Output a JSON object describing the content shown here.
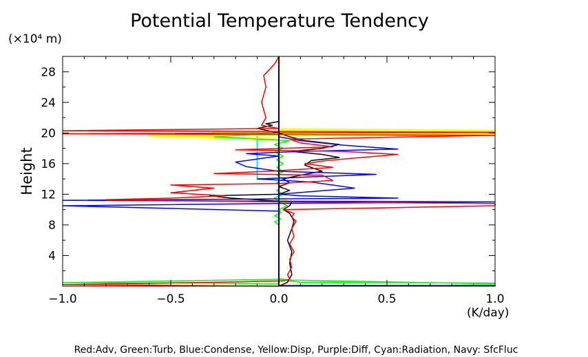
{
  "chart_data": {
    "type": "line",
    "title": "Potential Temperature Tendency",
    "ylabel": "Height",
    "yunit": "(×10⁴ m)",
    "xunit": "(K/day)",
    "xlim": [
      -1.0,
      1.0
    ],
    "ylim": [
      0,
      30
    ],
    "xticks": [
      -1.0,
      -0.5,
      0.0,
      0.5,
      1.0
    ],
    "xtick_labels": [
      "−1.0",
      "−0.5",
      "0.0",
      "0.5",
      "1.0"
    ],
    "yticks": [
      4,
      8,
      12,
      16,
      20,
      24,
      28
    ],
    "ytick_labels": [
      "4",
      "8",
      "12",
      "16",
      "20",
      "24",
      "28"
    ],
    "grid": false,
    "legend_text": "Red:Adv, Green:Turb, Blue:Condense, Yellow:Disp, Purple:Diff, Cyan:Radiation, Navy: SfcFluc",
    "series": [
      {
        "name": "Cyan:Radiation",
        "color": "#00e5ee",
        "width": 2,
        "points": [
          [
            0,
            0
          ],
          [
            0,
            13.9
          ],
          [
            -0.1,
            14
          ],
          [
            -0.1,
            19.8
          ],
          [
            -0.02,
            20
          ],
          [
            0,
            20.3
          ],
          [
            0,
            30
          ]
        ]
      },
      {
        "name": "Yellow:Disp",
        "color": "#ffff00",
        "width": 3,
        "points": [
          [
            0,
            0
          ],
          [
            0,
            10.8
          ],
          [
            0.05,
            11
          ],
          [
            0,
            11.5
          ],
          [
            0,
            19.2
          ],
          [
            -0.6,
            19.7
          ],
          [
            1,
            19.9
          ],
          [
            -0.3,
            20.1
          ],
          [
            1,
            20.3
          ],
          [
            0,
            20.5
          ],
          [
            0,
            30
          ]
        ]
      },
      {
        "name": "Green:Turb",
        "color": "#00ff00",
        "width": 1.5,
        "points": [
          [
            0,
            0.3
          ],
          [
            -0.35,
            0.4
          ],
          [
            -1,
            0.45
          ],
          [
            0,
            0.9
          ],
          [
            0.1,
            0.5
          ],
          [
            1,
            0.4
          ],
          [
            1,
            0.3
          ],
          [
            0.05,
            0.8
          ],
          [
            0,
            1
          ],
          [
            0,
            8
          ],
          [
            -0.02,
            8.4
          ],
          [
            0.01,
            8.8
          ],
          [
            -0.02,
            9.2
          ],
          [
            0.01,
            9.6
          ],
          [
            0,
            10
          ],
          [
            0.04,
            10.5
          ],
          [
            0,
            11
          ],
          [
            -0.02,
            11.5
          ],
          [
            0.02,
            12
          ],
          [
            -0.01,
            12.5
          ],
          [
            0.01,
            13
          ],
          [
            -0.01,
            13.5
          ],
          [
            0.02,
            14
          ],
          [
            -0.01,
            14.5
          ],
          [
            0.02,
            15
          ],
          [
            -0.01,
            15.5
          ],
          [
            0.02,
            16
          ],
          [
            -0.01,
            16.5
          ],
          [
            0.02,
            17
          ],
          [
            -0.02,
            17.5
          ],
          [
            0.02,
            18
          ],
          [
            -0.02,
            18.5
          ],
          [
            0.05,
            19
          ],
          [
            -0.3,
            19.5
          ],
          [
            0,
            20
          ],
          [
            0,
            30
          ]
        ]
      },
      {
        "name": "Black",
        "color": "#000000",
        "width": 1.5,
        "points": [
          [
            0,
            0
          ],
          [
            0.04,
            0.5
          ],
          [
            0.06,
            1.5
          ],
          [
            0.05,
            3
          ],
          [
            0.06,
            4.5
          ],
          [
            0.04,
            6
          ],
          [
            0.06,
            7.5
          ],
          [
            0.07,
            8.5
          ],
          [
            0.05,
            9.5
          ],
          [
            0.02,
            10
          ],
          [
            0.05,
            10.5
          ],
          [
            0.06,
            11
          ],
          [
            -0.22,
            11.5
          ],
          [
            -0.32,
            11.8
          ],
          [
            0,
            12
          ],
          [
            0.05,
            12.5
          ],
          [
            0,
            13
          ],
          [
            0.05,
            13.5
          ],
          [
            0.02,
            14
          ],
          [
            0.1,
            14.5
          ],
          [
            0.2,
            15
          ],
          [
            0.12,
            15.8
          ],
          [
            0.15,
            16.4
          ],
          [
            0.28,
            16.8
          ],
          [
            0.2,
            17.2
          ],
          [
            0.06,
            17.6
          ],
          [
            0.2,
            18
          ],
          [
            0.28,
            18.5
          ],
          [
            0.12,
            19
          ],
          [
            0.05,
            19.5
          ],
          [
            0,
            20
          ],
          [
            -0.1,
            20.6
          ],
          [
            -0.03,
            21
          ],
          [
            -0.06,
            21.2
          ],
          [
            0,
            21.5
          ],
          [
            0,
            30
          ]
        ]
      },
      {
        "name": "Blue:Condense",
        "color": "#0000ff",
        "width": 1.5,
        "points": [
          [
            0,
            0
          ],
          [
            0,
            9.8
          ],
          [
            -1,
            10.5
          ],
          [
            0,
            10.8
          ],
          [
            1,
            11
          ],
          [
            -1,
            11.2
          ],
          [
            0,
            11.4
          ],
          [
            0.55,
            11.5
          ],
          [
            0.1,
            11.8
          ],
          [
            0,
            12
          ],
          [
            0.35,
            12.8
          ],
          [
            0.15,
            13.6
          ],
          [
            -0.1,
            14
          ],
          [
            0.18,
            14.3
          ],
          [
            0.45,
            14.6
          ],
          [
            0,
            15
          ],
          [
            -0.15,
            15.6
          ],
          [
            -0.2,
            16.2
          ],
          [
            0,
            17
          ],
          [
            -0.15,
            17.3
          ],
          [
            0.1,
            17.6
          ],
          [
            0.55,
            17.9
          ],
          [
            0.3,
            18.4
          ],
          [
            0.1,
            19
          ],
          [
            0,
            19.5
          ],
          [
            0,
            30
          ]
        ]
      },
      {
        "name": "Red:Adv",
        "color": "#ff0000",
        "width": 1.5,
        "points": [
          [
            0,
            0
          ],
          [
            -1,
            0.2
          ],
          [
            -0.65,
            0.35
          ],
          [
            -0.2,
            0.55
          ],
          [
            0.02,
            0.7
          ],
          [
            0.05,
            0.9
          ],
          [
            0.04,
            1.5
          ],
          [
            0.06,
            2.5
          ],
          [
            0.05,
            3.5
          ],
          [
            0.07,
            4.5
          ],
          [
            0.05,
            5.5
          ],
          [
            0.07,
            6.5
          ],
          [
            0.06,
            7.5
          ],
          [
            0.08,
            8.5
          ],
          [
            0.06,
            9
          ],
          [
            0.07,
            9.5
          ],
          [
            0.02,
            10
          ],
          [
            1,
            10.5
          ],
          [
            1,
            10.8
          ],
          [
            0,
            11
          ],
          [
            -0.8,
            11.3
          ],
          [
            -0.5,
            11.5
          ],
          [
            -0.25,
            11.8
          ],
          [
            -0.5,
            12.2
          ],
          [
            -0.3,
            12.8
          ],
          [
            -0.5,
            13.2
          ],
          [
            0,
            13.4
          ],
          [
            0.25,
            13.8
          ],
          [
            0.2,
            14.5
          ],
          [
            -0.3,
            14.7
          ],
          [
            -0.05,
            15
          ],
          [
            0.25,
            15.5
          ],
          [
            0.12,
            16
          ],
          [
            0.22,
            16.4
          ],
          [
            0.38,
            16.8
          ],
          [
            0.55,
            17.2
          ],
          [
            0.3,
            17.6
          ],
          [
            -0.2,
            17.8
          ],
          [
            0.25,
            18.2
          ],
          [
            0.1,
            18.7
          ],
          [
            0.05,
            19.2
          ],
          [
            1,
            19.7
          ],
          [
            -1,
            19.9
          ],
          [
            1,
            20.1
          ],
          [
            -1,
            20.3
          ],
          [
            0,
            20.6
          ],
          [
            -0.08,
            21
          ],
          [
            -0.06,
            22
          ],
          [
            -0.08,
            24
          ],
          [
            -0.06,
            26
          ],
          [
            -0.07,
            27.5
          ],
          [
            -0.02,
            29
          ],
          [
            0,
            30
          ]
        ]
      },
      {
        "name": "Navy: SfcFluc",
        "color": "#000080",
        "width": 2,
        "points": [
          [
            0,
            0.05
          ],
          [
            1,
            0.05
          ],
          [
            0,
            0.05
          ],
          [
            0,
            30
          ]
        ]
      }
    ]
  }
}
